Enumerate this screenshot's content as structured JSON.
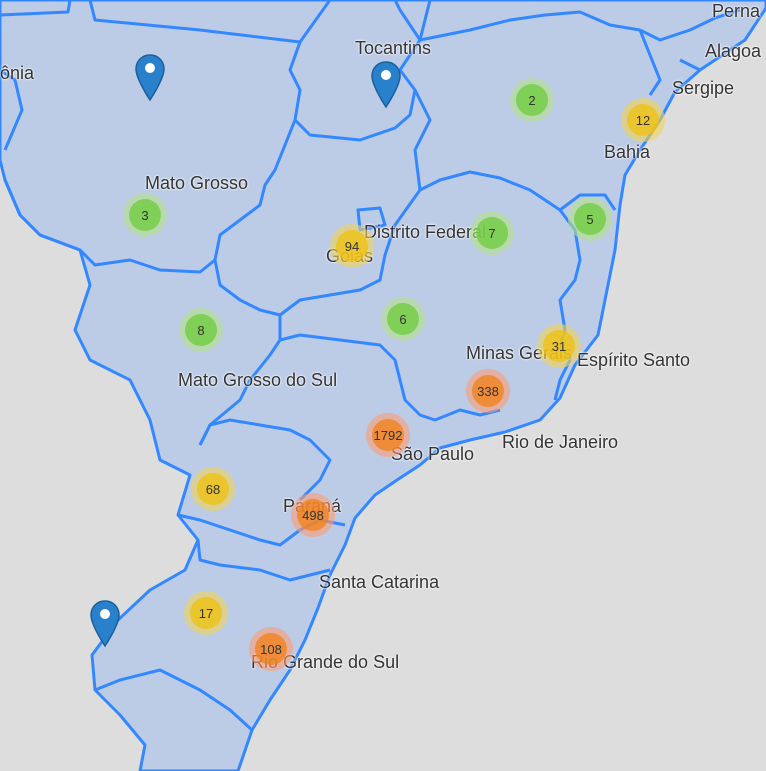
{
  "map": {
    "colors": {
      "background": "#dddddd",
      "state_fill": "#bccbe6",
      "border": "#3388ff"
    },
    "state_labels": [
      {
        "id": "rondonia",
        "text": "ônia"
      },
      {
        "id": "tocantins",
        "text": "Tocantins"
      },
      {
        "id": "pernambuco",
        "text": "Perna"
      },
      {
        "id": "alagoas",
        "text": "Alagoa"
      },
      {
        "id": "sergipe",
        "text": "Sergipe"
      },
      {
        "id": "bahia",
        "text": "Bahia"
      },
      {
        "id": "mato-grosso",
        "text": "Mato Grosso"
      },
      {
        "id": "distrito-federal",
        "text": "Distrito Federal"
      },
      {
        "id": "goias",
        "text": "Goiás"
      },
      {
        "id": "minas-gerais",
        "text": "Minas Gerais"
      },
      {
        "id": "espirito-santo",
        "text": "Espírito Santo"
      },
      {
        "id": "mato-grosso-do-sul",
        "text": "Mato Grosso do Sul"
      },
      {
        "id": "rio-de-janeiro",
        "text": "Rio de Janeiro"
      },
      {
        "id": "sao-paulo",
        "text": "São Paulo"
      },
      {
        "id": "parana",
        "text": "Paraná"
      },
      {
        "id": "santa-catarina",
        "text": "Santa Catarina"
      },
      {
        "id": "rio-grande-do-sul",
        "text": "Rio Grande do Sul"
      }
    ],
    "clusters": [
      {
        "id": "c1",
        "count": "2",
        "size": "small"
      },
      {
        "id": "c2",
        "count": "12",
        "size": "medium"
      },
      {
        "id": "c3",
        "count": "3",
        "size": "small"
      },
      {
        "id": "c4",
        "count": "94",
        "size": "medium"
      },
      {
        "id": "c5",
        "count": "7",
        "size": "small"
      },
      {
        "id": "c6",
        "count": "5",
        "size": "small"
      },
      {
        "id": "c7",
        "count": "8",
        "size": "small"
      },
      {
        "id": "c8",
        "count": "6",
        "size": "small"
      },
      {
        "id": "c9",
        "count": "31",
        "size": "medium"
      },
      {
        "id": "c10",
        "count": "338",
        "size": "large"
      },
      {
        "id": "c11",
        "count": "1792",
        "size": "large"
      },
      {
        "id": "c12",
        "count": "68",
        "size": "medium"
      },
      {
        "id": "c13",
        "count": "498",
        "size": "large"
      },
      {
        "id": "c14",
        "count": "17",
        "size": "medium"
      },
      {
        "id": "c15",
        "count": "108",
        "size": "large"
      }
    ],
    "markers": [
      {
        "id": "m1",
        "icon": "map-pin-icon"
      },
      {
        "id": "m2",
        "icon": "map-pin-icon"
      },
      {
        "id": "m3",
        "icon": "map-pin-icon"
      }
    ]
  }
}
